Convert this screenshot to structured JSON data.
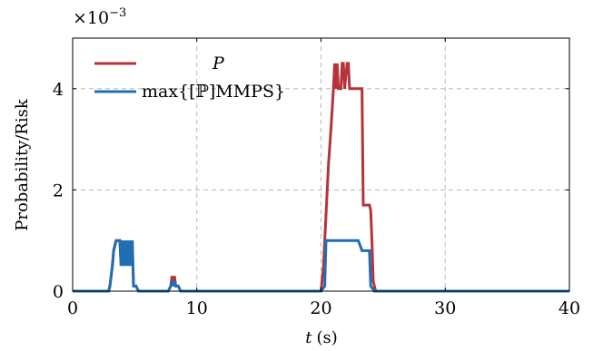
{
  "chart_data": {
    "type": "line",
    "xlabel_var": "t",
    "xlabel_unit": "(s)",
    "ylabel": "Probability/Risk",
    "y_multiplier": "×10",
    "y_multiplier_exp": "−3",
    "xlim": [
      0,
      40
    ],
    "ylim": [
      0,
      5
    ],
    "xticks": [
      0,
      10,
      20,
      30,
      40
    ],
    "yticks": [
      0,
      2,
      4
    ],
    "grid": true,
    "legend_position": "top-left",
    "series": [
      {
        "name": "P",
        "color": "#b5343c",
        "x": [
          0,
          2.9,
          3.0,
          3.2,
          3.3,
          3.4,
          3.5,
          3.6,
          3.8,
          3.9,
          4.0,
          4.1,
          4.2,
          4.3,
          4.4,
          4.5,
          4.6,
          4.7,
          4.8,
          4.9,
          5.0,
          5.1,
          5.3,
          5.4,
          7.7,
          7.9,
          8.0,
          8.1,
          8.2,
          8.3,
          8.4,
          8.5,
          8.7,
          8.8,
          20.0,
          20.2,
          20.4,
          20.6,
          20.8,
          20.9,
          21.0,
          21.1,
          21.2,
          21.3,
          21.4,
          21.5,
          21.6,
          21.7,
          21.8,
          21.9,
          22.1,
          22.2,
          22.3,
          22.5,
          22.6,
          23.0,
          23.3,
          23.4,
          23.6,
          23.8,
          23.9,
          24.0,
          24.1,
          24.2,
          24.4,
          40
        ],
        "y": [
          0,
          0,
          0.1,
          0.5,
          0.8,
          0.9,
          1.0,
          1.0,
          1.0,
          0.5,
          1.0,
          0.5,
          1.0,
          0.5,
          1.0,
          0.5,
          1.0,
          0.5,
          1.0,
          0.1,
          0.1,
          0.1,
          0.0,
          0,
          0,
          0.1,
          0.3,
          0.1,
          0.3,
          0.1,
          0.1,
          0.1,
          0.0,
          0,
          0,
          0.5,
          1.5,
          2.5,
          3.2,
          3.6,
          4.0,
          4.5,
          4.0,
          4.5,
          4.0,
          4.0,
          4.0,
          4.5,
          4.5,
          4.0,
          4.5,
          4.5,
          4.0,
          4.0,
          4.0,
          4.0,
          4.0,
          1.7,
          1.7,
          1.7,
          1.7,
          1.6,
          1.0,
          0.2,
          0.0,
          0
        ]
      },
      {
        "name": "max{[ℙ]MMPS}",
        "color": "#1f6fb2",
        "x": [
          0,
          2.9,
          3.0,
          3.2,
          3.3,
          3.4,
          3.5,
          3.6,
          3.8,
          3.9,
          4.0,
          4.1,
          4.2,
          4.3,
          4.4,
          4.5,
          4.6,
          4.7,
          4.8,
          4.9,
          5.0,
          5.1,
          5.3,
          5.4,
          7.7,
          7.9,
          8.0,
          8.1,
          8.2,
          8.3,
          8.4,
          8.5,
          8.7,
          8.8,
          20.0,
          20.3,
          20.4,
          23.0,
          23.3,
          23.9,
          24.0,
          24.3,
          40
        ],
        "y": [
          0,
          0,
          0.1,
          0.5,
          0.8,
          0.9,
          1.0,
          1.0,
          1.0,
          0.5,
          1.0,
          0.5,
          1.0,
          0.5,
          1.0,
          0.5,
          1.0,
          0.5,
          1.0,
          0.1,
          0.1,
          0.1,
          0.0,
          0,
          0,
          0.1,
          0.2,
          0.1,
          0.2,
          0.1,
          0.1,
          0.1,
          0.0,
          0,
          0,
          0.1,
          1.0,
          1.0,
          0.8,
          0.8,
          0.1,
          0.0,
          0
        ]
      }
    ]
  }
}
